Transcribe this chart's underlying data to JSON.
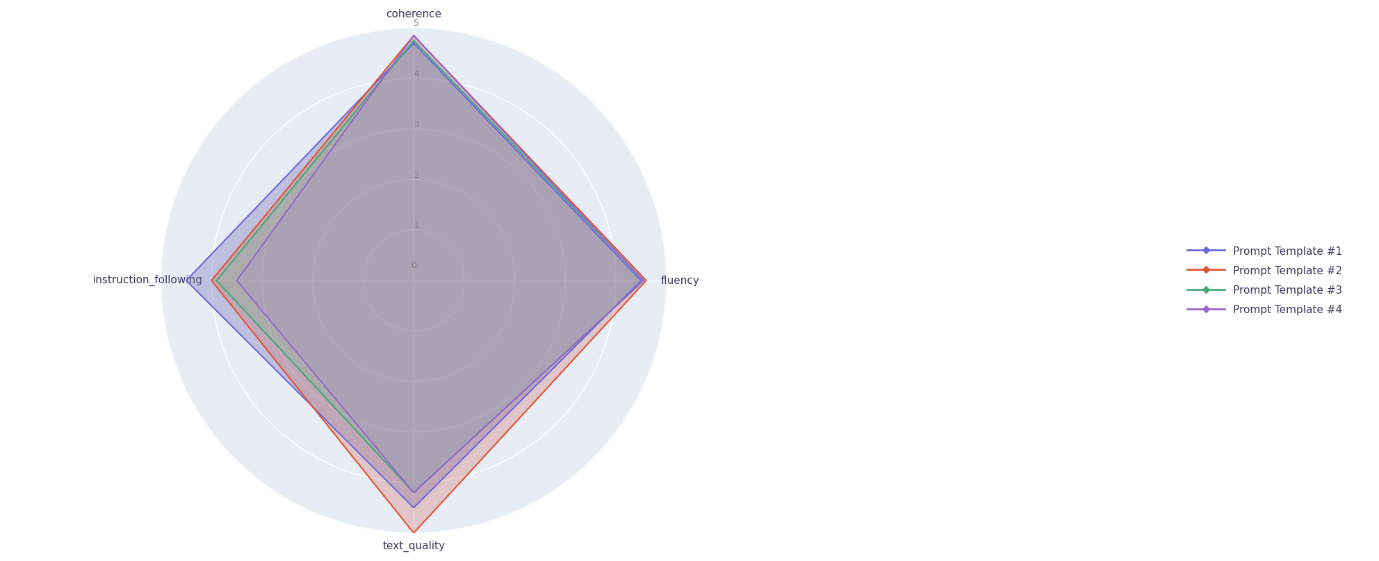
{
  "categories": [
    "coherence",
    "fluency",
    "text_quality",
    "instruction_following"
  ],
  "templates": [
    {
      "name": "Prompt Template #1",
      "values": [
        4.7,
        4.5,
        4.5,
        4.5
      ],
      "color": "#6b6bdc",
      "fill_color": "#8080bb",
      "fill_alpha": 0.4
    },
    {
      "name": "Prompt Template #2",
      "values": [
        4.85,
        4.6,
        5.0,
        4.0
      ],
      "color": "#e05535",
      "fill_color": "#cc6655",
      "fill_alpha": 0.28
    },
    {
      "name": "Prompt Template #3",
      "values": [
        4.75,
        4.55,
        4.2,
        3.9
      ],
      "color": "#44aa77",
      "fill_color": "#55bb88",
      "fill_alpha": 0.2
    },
    {
      "name": "Prompt Template #4",
      "values": [
        4.85,
        4.55,
        4.2,
        3.5
      ],
      "color": "#9966cc",
      "fill_color": "#aa77dd",
      "fill_alpha": 0.15
    }
  ],
  "r_max": 5,
  "r_ticks": [
    1,
    2,
    3,
    4,
    5
  ],
  "background_color": "#ffffff",
  "grid_color": "#ffffff",
  "polar_bg_color": "#e8ecf5",
  "legend_fontsize": 11,
  "label_fontsize": 11,
  "figsize": [
    19.84,
    8.08
  ],
  "dpi": 100
}
